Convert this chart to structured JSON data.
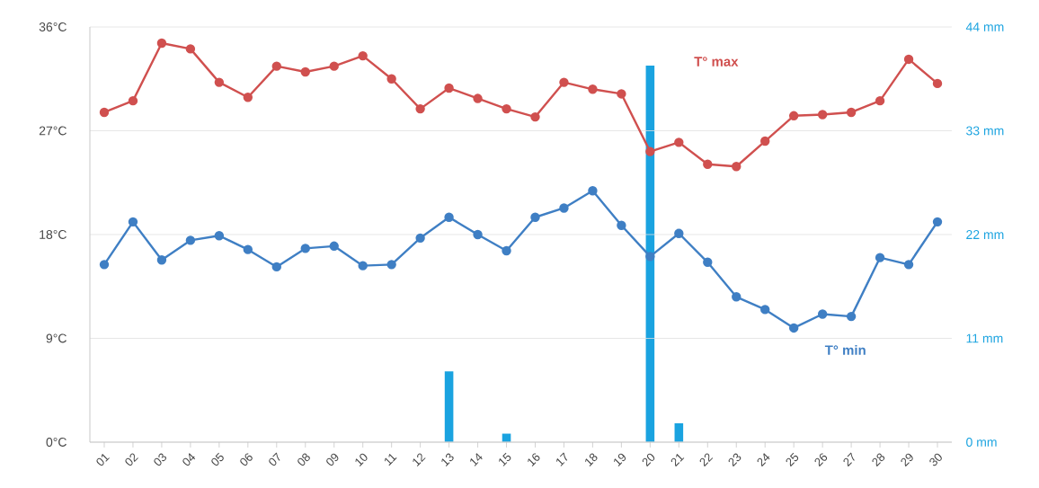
{
  "chart_data": {
    "type": "line",
    "categories": [
      "01",
      "02",
      "03",
      "04",
      "05",
      "06",
      "07",
      "08",
      "09",
      "10",
      "11",
      "12",
      "13",
      "14",
      "15",
      "16",
      "17",
      "18",
      "19",
      "20",
      "21",
      "22",
      "23",
      "24",
      "25",
      "26",
      "27",
      "28",
      "29",
      "30"
    ],
    "series": [
      {
        "name": "T° max",
        "color": "#d0504f",
        "values": [
          28.6,
          29.6,
          34.6,
          34.1,
          31.2,
          29.9,
          32.6,
          32.1,
          32.6,
          33.5,
          31.5,
          28.9,
          30.7,
          29.8,
          28.9,
          28.2,
          31.2,
          30.6,
          30.2,
          25.2,
          26.0,
          24.1,
          23.9,
          26.1,
          28.3,
          28.4,
          28.6,
          29.6,
          33.2,
          31.1
        ]
      },
      {
        "name": "T° min",
        "color": "#3f7fc4",
        "values": [
          15.4,
          19.1,
          15.8,
          17.5,
          17.9,
          16.7,
          15.2,
          16.8,
          17.0,
          15.3,
          15.4,
          17.7,
          19.5,
          18.0,
          16.6,
          19.5,
          20.3,
          21.8,
          18.8,
          16.1,
          18.1,
          15.6,
          12.6,
          11.5,
          9.9,
          11.1,
          10.9,
          16.0,
          15.4,
          19.1
        ]
      },
      {
        "type": "bar",
        "axis": "y2",
        "color": "#1aa3e0",
        "values": [
          null,
          null,
          null,
          null,
          null,
          null,
          null,
          null,
          null,
          null,
          null,
          null,
          7.5,
          null,
          0.9,
          null,
          null,
          null,
          null,
          39.9,
          2.0,
          null,
          null,
          null,
          null,
          null,
          null,
          null,
          null,
          null
        ]
      }
    ],
    "ylim": [
      0,
      36
    ],
    "yticks": [
      {
        "value": 0,
        "label": "0°C"
      },
      {
        "value": 9,
        "label": "9°C"
      },
      {
        "value": 18,
        "label": "18°C"
      },
      {
        "value": 27,
        "label": "27°C"
      },
      {
        "value": 36,
        "label": "36°C"
      }
    ],
    "y2lim": [
      0,
      44
    ],
    "y2ticks": [
      {
        "value": 0,
        "label": "0 mm"
      },
      {
        "value": 11,
        "label": "11 mm"
      },
      {
        "value": 22,
        "label": "22 mm"
      },
      {
        "value": 33,
        "label": "33 mm"
      },
      {
        "value": 44,
        "label": "44 mm"
      }
    ],
    "grid": "y",
    "legend": false,
    "marker": "circle",
    "line_style": "solid"
  }
}
